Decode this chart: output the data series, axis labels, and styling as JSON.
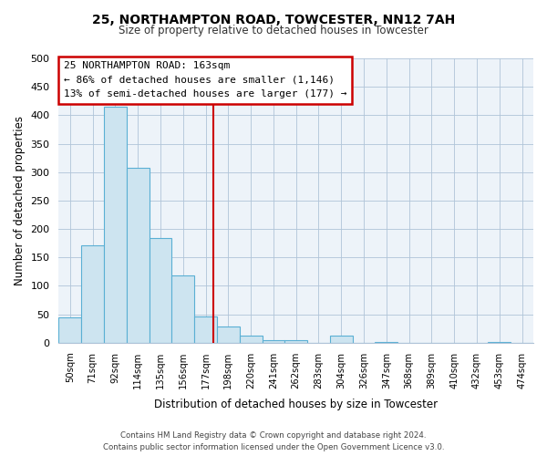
{
  "title": "25, NORTHAMPTON ROAD, TOWCESTER, NN12 7AH",
  "subtitle": "Size of property relative to detached houses in Towcester",
  "xlabel": "Distribution of detached houses by size in Towcester",
  "ylabel": "Number of detached properties",
  "bar_labels": [
    "50sqm",
    "71sqm",
    "92sqm",
    "114sqm",
    "135sqm",
    "156sqm",
    "177sqm",
    "198sqm",
    "220sqm",
    "241sqm",
    "262sqm",
    "283sqm",
    "304sqm",
    "326sqm",
    "347sqm",
    "368sqm",
    "389sqm",
    "410sqm",
    "432sqm",
    "453sqm",
    "474sqm"
  ],
  "bar_values": [
    44,
    172,
    415,
    308,
    184,
    118,
    46,
    28,
    13,
    5,
    5,
    0,
    13,
    0,
    2,
    0,
    0,
    0,
    0,
    2,
    0
  ],
  "bar_color": "#cde4f0",
  "bar_edge_color": "#5aafd4",
  "ylim": [
    0,
    500
  ],
  "yticks": [
    0,
    50,
    100,
    150,
    200,
    250,
    300,
    350,
    400,
    450,
    500
  ],
  "red_line_x": 6.33,
  "annotation_text": "25 NORTHAMPTON ROAD: 163sqm\n← 86% of detached houses are smaller (1,146)\n13% of semi-detached houses are larger (177) →",
  "annotation_box_color": "#ffffff",
  "annotation_box_edge": "#cc0000",
  "footer_line1": "Contains HM Land Registry data © Crown copyright and database right 2024.",
  "footer_line2": "Contains public sector information licensed under the Open Government Licence v3.0.",
  "bg_color": "#e8f0f8",
  "plot_bg_color": "#edf3f9"
}
